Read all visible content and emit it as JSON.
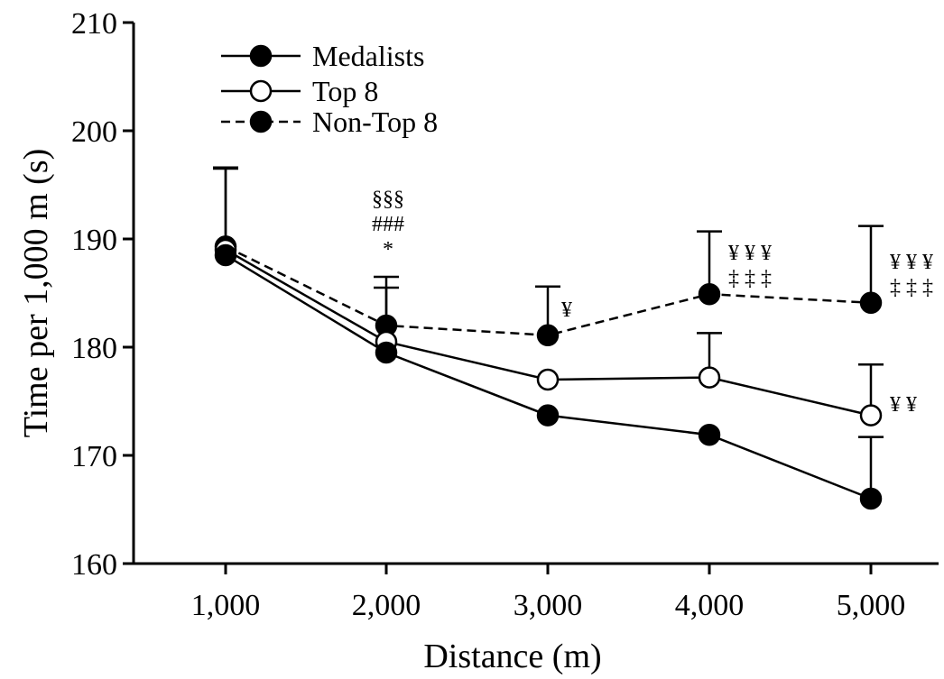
{
  "chart_data": {
    "type": "line",
    "title": "",
    "xlabel": "Distance (m)",
    "ylabel": "Time per 1,000 m (s)",
    "categories": [
      "1,000",
      "2,000",
      "3,000",
      "4,000",
      "5,000"
    ],
    "x": [
      1000,
      2000,
      3000,
      4000,
      5000
    ],
    "ylim": [
      160,
      210
    ],
    "yticks": [
      "160",
      "170",
      "180",
      "190",
      "200",
      "210"
    ],
    "grid": false,
    "legend_position": "top-left",
    "series": [
      {
        "name": "Medalists",
        "marker": "filled",
        "line": "solid",
        "values": [
          188.5,
          179.5,
          173.7,
          171.9,
          166.0
        ],
        "error": [
          null,
          null,
          null,
          null,
          5.7
        ]
      },
      {
        "name": "Top 8",
        "marker": "open",
        "line": "solid",
        "values": [
          189.0,
          180.5,
          177.0,
          177.2,
          173.7
        ],
        "error": [
          7.5,
          5.0,
          null,
          4.1,
          4.7
        ]
      },
      {
        "name": "Non-Top 8",
        "marker": "filled",
        "line": "dashed",
        "values": [
          189.3,
          182.0,
          181.1,
          184.9,
          184.1
        ],
        "error": [
          7.3,
          4.5,
          4.5,
          5.8,
          7.1
        ]
      }
    ],
    "annotations": [
      {
        "x": 2000,
        "lines": [
          "§§§",
          "###",
          "*"
        ]
      },
      {
        "x": 3000,
        "lines": [
          "¥"
        ]
      },
      {
        "x": 4000,
        "lines": [
          "¥ ¥ ¥",
          "‡ ‡ ‡"
        ]
      },
      {
        "x": 5000,
        "lines": [
          "¥ ¥ ¥",
          "‡ ‡ ‡"
        ]
      },
      {
        "x": 5000,
        "lines": [
          "¥ ¥"
        ]
      }
    ]
  }
}
